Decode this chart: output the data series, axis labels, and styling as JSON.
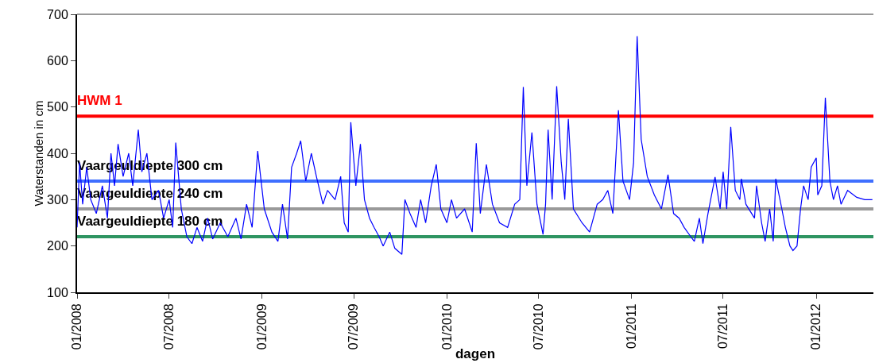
{
  "chart_data": {
    "type": "line",
    "xlabel": "dagen",
    "ylabel": "Waterstanden in cm",
    "x": [
      "2008-01-01",
      "2008-01-06",
      "2008-01-12",
      "2008-01-20",
      "2008-01-28",
      "2008-02-08",
      "2008-02-20",
      "2008-03-01",
      "2008-03-08",
      "2008-03-15",
      "2008-03-22",
      "2008-04-01",
      "2008-04-12",
      "2008-04-20",
      "2008-05-01",
      "2008-05-08",
      "2008-05-18",
      "2008-05-28",
      "2008-06-10",
      "2008-06-20",
      "2008-07-01",
      "2008-07-08",
      "2008-07-14",
      "2008-07-25",
      "2008-08-05",
      "2008-08-15",
      "2008-08-25",
      "2008-09-05",
      "2008-09-15",
      "2008-09-25",
      "2008-10-10",
      "2008-10-25",
      "2008-11-10",
      "2008-11-20",
      "2008-12-01",
      "2008-12-12",
      "2008-12-23",
      "2009-01-05",
      "2009-01-20",
      "2009-02-01",
      "2009-02-10",
      "2009-02-20",
      "2009-02-28",
      "2009-03-10",
      "2009-03-18",
      "2009-03-28",
      "2009-04-08",
      "2009-04-18",
      "2009-05-01",
      "2009-05-10",
      "2009-05-25",
      "2009-06-05",
      "2009-06-12",
      "2009-06-20",
      "2009-06-25",
      "2009-07-05",
      "2009-07-14",
      "2009-07-22",
      "2009-08-01",
      "2009-08-10",
      "2009-08-20",
      "2009-08-28",
      "2009-09-10",
      "2009-09-20",
      "2009-10-04",
      "2009-10-10",
      "2009-10-20",
      "2009-11-01",
      "2009-11-10",
      "2009-11-20",
      "2009-12-01",
      "2009-12-11",
      "2009-12-20",
      "2010-01-01",
      "2010-01-10",
      "2010-01-20",
      "2010-02-05",
      "2010-02-20",
      "2010-02-28",
      "2010-03-08",
      "2010-03-20",
      "2010-04-01",
      "2010-04-15",
      "2010-05-01",
      "2010-05-15",
      "2010-05-25",
      "2010-06-01",
      "2010-06-08",
      "2010-06-18",
      "2010-06-28",
      "2010-07-10",
      "2010-07-15",
      "2010-07-20",
      "2010-07-28",
      "2010-08-06",
      "2010-08-15",
      "2010-08-22",
      "2010-08-29",
      "2010-09-08",
      "2010-09-25",
      "2010-10-10",
      "2010-10-25",
      "2010-11-05",
      "2010-11-15",
      "2010-11-25",
      "2010-12-06",
      "2010-12-15",
      "2010-12-28",
      "2011-01-05",
      "2011-01-12",
      "2011-01-20",
      "2011-02-01",
      "2011-02-15",
      "2011-03-01",
      "2011-03-14",
      "2011-03-25",
      "2011-04-05",
      "2011-04-15",
      "2011-04-28",
      "2011-05-05",
      "2011-05-15",
      "2011-05-22",
      "2011-06-01",
      "2011-06-15",
      "2011-06-25",
      "2011-07-01",
      "2011-07-08",
      "2011-07-16",
      "2011-07-25",
      "2011-08-03",
      "2011-08-06",
      "2011-08-15",
      "2011-09-01",
      "2011-09-05",
      "2011-09-15",
      "2011-09-22",
      "2011-10-01",
      "2011-10-08",
      "2011-10-13",
      "2011-10-25",
      "2011-11-01",
      "2011-11-10",
      "2011-11-16",
      "2011-11-24",
      "2011-12-01",
      "2011-12-07",
      "2011-12-16",
      "2011-12-22",
      "2012-01-01",
      "2012-01-04",
      "2012-01-12",
      "2012-01-19",
      "2012-01-28",
      "2012-02-04",
      "2012-02-12",
      "2012-02-19",
      "2012-03-03",
      "2012-03-21",
      "2012-04-06",
      "2012-04-21"
    ],
    "series": [
      {
        "color": "#0000ff",
        "values": [
          240,
          380,
          290,
          370,
          300,
          270,
          330,
          260,
          400,
          330,
          420,
          350,
          400,
          330,
          451,
          360,
          400,
          300,
          320,
          260,
          300,
          240,
          423,
          280,
          220,
          205,
          240,
          210,
          260,
          215,
          250,
          220,
          260,
          215,
          290,
          240,
          405,
          280,
          230,
          210,
          290,
          215,
          370,
          400,
          427,
          340,
          400,
          350,
          290,
          320,
          300,
          350,
          250,
          230,
          467,
          330,
          420,
          300,
          260,
          240,
          220,
          200,
          230,
          195,
          182,
          300,
          270,
          240,
          300,
          250,
          330,
          376,
          280,
          250,
          300,
          260,
          280,
          230,
          422,
          270,
          376,
          290,
          250,
          240,
          290,
          300,
          543,
          330,
          445,
          290,
          225,
          290,
          451,
          300,
          545,
          380,
          300,
          474,
          280,
          250,
          230,
          290,
          300,
          320,
          270,
          493,
          340,
          300,
          380,
          653,
          430,
          350,
          310,
          280,
          354,
          270,
          260,
          240,
          220,
          210,
          260,
          205,
          270,
          349,
          280,
          360,
          280,
          457,
          320,
          300,
          345,
          290,
          260,
          330,
          250,
          210,
          280,
          210,
          345,
          280,
          240,
          200,
          190,
          200,
          280,
          330,
          300,
          370,
          390,
          310,
          330,
          520,
          340,
          300,
          330,
          290,
          320,
          305,
          300,
          300
        ]
      }
    ],
    "xlim": [
      "2008-01-01",
      "2012-04-23"
    ],
    "xticks": [
      {
        "value": "2008-01-01",
        "label": "01/2008"
      },
      {
        "value": "2008-07-01",
        "label": "07/2008"
      },
      {
        "value": "2009-01-01",
        "label": "01/2009"
      },
      {
        "value": "2009-07-01",
        "label": "07/2009"
      },
      {
        "value": "2010-01-01",
        "label": "01/2010"
      },
      {
        "value": "2010-07-01",
        "label": "07/2010"
      },
      {
        "value": "2011-01-01",
        "label": "01/2011"
      },
      {
        "value": "2011-07-01",
        "label": "07/2011"
      },
      {
        "value": "2012-01-01",
        "label": "01/2012"
      }
    ],
    "ylim": [
      100,
      700
    ],
    "yticks": [
      100,
      200,
      300,
      400,
      500,
      600,
      700
    ],
    "ref_lines": [
      {
        "axis": "y",
        "value": 480,
        "label": "HWM 1",
        "color": "#ff0000"
      },
      {
        "axis": "y",
        "value": 340,
        "label": "Vaargeuldiepte 300 cm",
        "color": "#3f6fff"
      },
      {
        "axis": "y",
        "value": 280,
        "label": "Vaargeuldiepte 240 cm",
        "color": "#999999"
      },
      {
        "axis": "y",
        "value": 220,
        "label": "Vaargeuldiepte 180 cm",
        "color": "#2e9461"
      }
    ],
    "grid": false,
    "marker": "none",
    "line_style": "solid"
  }
}
